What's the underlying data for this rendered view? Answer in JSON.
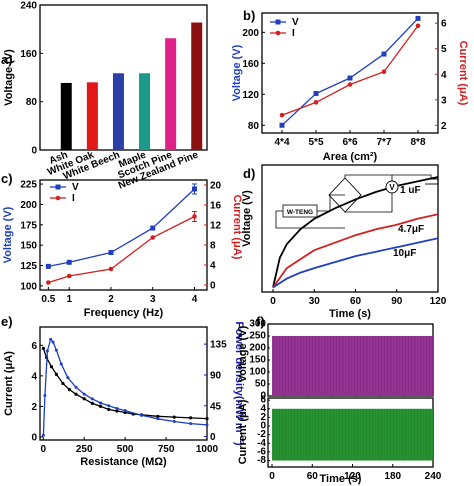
{
  "colors": {
    "blue": "#1f3fbf",
    "red": "#d22020",
    "black": "#000000",
    "purple": "#8b2a8b",
    "green": "#1e8a2a"
  },
  "chart_data": [
    {
      "panel": "a)",
      "type": "bar",
      "ylabel": "Voltage (V)",
      "ylim": [
        0,
        240
      ],
      "yticks": [
        0,
        80,
        160,
        240
      ],
      "categories": [
        "Ash",
        "White Oak",
        "White Beech",
        "Maple",
        "Scotch Pine",
        "New Zealand Pine"
      ],
      "category_colors": [
        "#000000",
        "#e01818",
        "#2b3fa8",
        "#1a9a8a",
        "#e0208a",
        "#8b1010"
      ],
      "values": [
        111,
        112,
        127,
        127,
        185,
        211
      ]
    },
    {
      "panel": "b)",
      "type": "line",
      "xlabel": "Area (cm²)",
      "ylabel": "Voltage (V)",
      "ylabel2": "Current (μA)",
      "categories": [
        "4*4",
        "5*5",
        "6*6",
        "7*7",
        "8*8"
      ],
      "ylim": [
        70,
        225
      ],
      "yticks": [
        80,
        120,
        160,
        200
      ],
      "y2lim": [
        1.7,
        6.4
      ],
      "y2ticks": [
        2,
        3,
        4,
        5,
        6
      ],
      "legend": "top-left",
      "series": [
        {
          "name": "V",
          "axis": "left",
          "values": [
            80,
            121,
            141,
            172,
            218
          ]
        },
        {
          "name": "I",
          "axis": "right",
          "values": [
            2.4,
            2.9,
            3.6,
            4.1,
            5.9
          ]
        }
      ]
    },
    {
      "panel": "c)",
      "type": "line",
      "xlabel": "Frequency (Hz)",
      "ylabel": "Voltage (V)",
      "ylabel2": "Current (μA)",
      "categories": [
        0.5,
        1,
        2,
        3,
        4
      ],
      "xlim": [
        0.3,
        4.3
      ],
      "ylim": [
        95,
        230
      ],
      "yticks": [
        100,
        125,
        150,
        175,
        200,
        225
      ],
      "y2lim": [
        -1,
        21
      ],
      "y2ticks": [
        0,
        4,
        8,
        12,
        16,
        20
      ],
      "legend": "top-left",
      "series": [
        {
          "name": "V",
          "axis": "left",
          "values": [
            124,
            129,
            141,
            171,
            219
          ]
        },
        {
          "name": "I",
          "axis": "right",
          "values": [
            0.5,
            1.8,
            3.2,
            9.5,
            13.7
          ]
        }
      ]
    },
    {
      "panel": "d)",
      "type": "line",
      "xlabel": "Time (s)",
      "ylabel": "Voltage (V)",
      "xlim": [
        -8,
        120
      ],
      "xticks": [
        0,
        30,
        60,
        90,
        120
      ],
      "ylim": [
        -0.3,
        8.2
      ],
      "series": [
        {
          "name": "1 μF",
          "label": "1 uF",
          "t": [
            0,
            5,
            10,
            20,
            30,
            45,
            60,
            75,
            90,
            105,
            120
          ],
          "values": [
            0,
            2.0,
            2.9,
            3.9,
            4.6,
            5.3,
            5.9,
            6.4,
            6.8,
            7.1,
            7.4
          ]
        },
        {
          "name": "4.7 μF",
          "label": "4.7μF",
          "t": [
            0,
            10,
            20,
            30,
            45,
            60,
            75,
            90,
            105,
            120
          ],
          "values": [
            0,
            1.3,
            1.9,
            2.5,
            3.0,
            3.5,
            3.9,
            4.2,
            4.6,
            4.9
          ]
        },
        {
          "name": "10 μF",
          "label": "10μF",
          "t": [
            0,
            10,
            20,
            30,
            45,
            60,
            75,
            90,
            105,
            120
          ],
          "values": [
            0,
            0.6,
            1.0,
            1.3,
            1.7,
            2.1,
            2.4,
            2.7,
            3.0,
            3.3
          ]
        }
      ],
      "inset_labels": {
        "teng": "W-TENG",
        "meter": "V"
      }
    },
    {
      "panel": "e)",
      "type": "line",
      "xlabel": "Resistance (MΩ)",
      "ylabel": "Current (μA)",
      "ylabel2": "Power density(mW m⁻²)",
      "xlim": [
        -20,
        1000
      ],
      "xticks": [
        0,
        250,
        500,
        750,
        1000
      ],
      "ylim": [
        -0.2,
        7.2
      ],
      "yticks": [
        0,
        2,
        4,
        6
      ],
      "y2lim": [
        -5,
        160
      ],
      "y2ticks": [
        0,
        45,
        90,
        135
      ],
      "series": [
        {
          "name": "Current",
          "axis": "left",
          "x": [
            1,
            20,
            50,
            80,
            120,
            160,
            200,
            250,
            300,
            350,
            400,
            450,
            500,
            550,
            600,
            700,
            800,
            900,
            1000
          ],
          "values": [
            5.8,
            5.2,
            4.6,
            4.1,
            3.5,
            3.1,
            2.8,
            2.5,
            2.2,
            2.0,
            1.8,
            1.7,
            1.6,
            1.5,
            1.45,
            1.35,
            1.3,
            1.25,
            1.2
          ]
        },
        {
          "name": "Power density",
          "axis": "right",
          "x": [
            1,
            10,
            25,
            45,
            60,
            80,
            110,
            150,
            200,
            250,
            300,
            350,
            400,
            450,
            500,
            600,
            700,
            800,
            900,
            1000
          ],
          "values": [
            2,
            60,
            125,
            142,
            138,
            126,
            106,
            86,
            72,
            62,
            55,
            49,
            45,
            41,
            38,
            31,
            26,
            22,
            19,
            17
          ]
        }
      ]
    },
    {
      "panel": "f)",
      "type": "area",
      "xlabel": "Time (s)",
      "ylabel": "Voltage (V)",
      "ylabel2": "Current (μA)",
      "xlim": [
        -6,
        240
      ],
      "xticks": [
        0,
        60,
        120,
        180,
        240
      ],
      "top": {
        "ylim": [
          0,
          300
        ],
        "yticks": [
          0,
          50,
          100,
          150,
          200,
          250,
          300
        ],
        "amplitude": [
          0,
          250
        ]
      },
      "bottom": {
        "ylim": [
          -9.5,
          6.5
        ],
        "yticks": [
          -8,
          -6,
          -4,
          -2,
          0,
          2,
          4,
          6
        ],
        "amplitude": [
          -8,
          4
        ]
      }
    }
  ]
}
